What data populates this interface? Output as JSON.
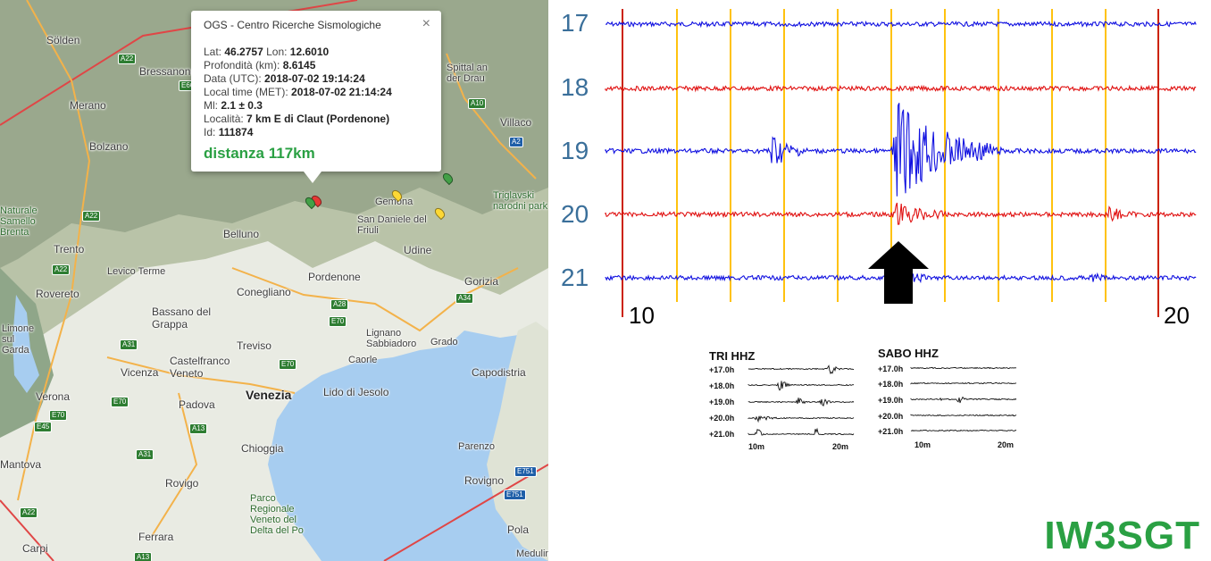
{
  "map": {
    "info": {
      "title": "OGS - Centro Ricerche Sismologiche",
      "close": "×",
      "lat_label": "Lat:",
      "lat": "46.2757",
      "lon_label": "Lon:",
      "lon": "12.6010",
      "depth_label": "Profondità (km):",
      "depth": "8.6145",
      "date_label": "Data (UTC):",
      "date": "2018-07-02 19:14:24",
      "local_label": "Local time (MET):",
      "local": "2018-07-02 21:14:24",
      "ml_label": "Ml:",
      "ml": "2.1 ± 0.3",
      "loc_label": "Località:",
      "loc": "7 km E di Claut (Pordenone)",
      "id_label": "Id:",
      "id": "111874",
      "distance": "distanza 117km"
    },
    "places": [
      "Meran",
      "Merano",
      "Bolzano",
      "Trento",
      "Rovereto",
      "Belluno",
      "Pordenone",
      "Conegliano",
      "Udine",
      "Treviso",
      "Vicenza",
      "Padova",
      "Venezia",
      "Chioggia",
      "Verona",
      "Mantova",
      "Rovigo",
      "Ferrara",
      "Carpi",
      "Lido di Jesolo",
      "Bassano del Grappa",
      "Castelfranco Veneto",
      "Lignano Sabbiadoro",
      "Grado",
      "Caorle",
      "Gorizia",
      "Capodistria",
      "Parenzo",
      "Rovigno",
      "Pola",
      "Villaco",
      "Gemona",
      "San Daniele del Friuli",
      "Levico Terme",
      "Limone sul Garda",
      "Spittal an der Drau",
      "Triglavski narodni park",
      "Bressanone",
      "Parco Regionale Veneto del Delta del Po",
      "Medulin",
      "Naturale Samello Brenta"
    ],
    "roads": [
      "A22",
      "A22",
      "A22",
      "A22",
      "A10",
      "A2",
      "E66",
      "A28",
      "E70",
      "E70",
      "A31",
      "A31",
      "E70",
      "A13",
      "A13",
      "E45",
      "E70",
      "A34",
      "E751",
      "E751"
    ]
  },
  "seismogram": {
    "hour_labels": [
      "17",
      "18",
      "19",
      "20",
      "21"
    ],
    "minute_labels": [
      "10",
      "20"
    ],
    "series_colors": [
      "#1010e0",
      "#e01010"
    ],
    "grid_color": "#ffc20e",
    "marker_line_color": "#cc2200",
    "arrow": "up-arrow",
    "mini_plots": [
      {
        "title": "TRI HHZ",
        "rows": [
          "+17.0h",
          "+18.0h",
          "+19.0h",
          "+20.0h",
          "+21.0h"
        ],
        "x_labels": [
          "10m",
          "20m"
        ]
      },
      {
        "title": "SABO HHZ",
        "rows": [
          "+17.0h",
          "+18.0h",
          "+19.0h",
          "+20.0h",
          "+21.0h"
        ],
        "x_labels": [
          "10m",
          "20m"
        ]
      }
    ],
    "callsign": "IW3SGT"
  }
}
